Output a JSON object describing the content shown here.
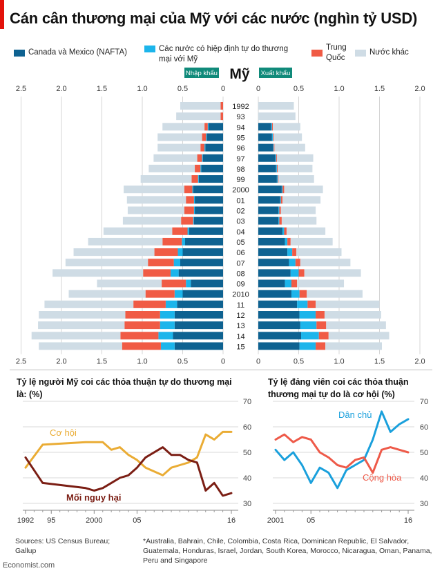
{
  "title": "Cán cân thương mại của Mỹ với các nước (nghìn tỷ USD)",
  "colors": {
    "nafta": "#0e6291",
    "fta": "#1cb5eb",
    "china": "#f05b45",
    "other": "#cfdce5",
    "label_bg": "#108a7a",
    "opportunity": "#eaac34",
    "threat": "#7b1e14",
    "democrats": "#1aa0dc",
    "republicans": "#ee5a49"
  },
  "legend": {
    "nafta": "Canada và Mexico (NAFTA)",
    "fta_line1": "Các nước có hiệp định tự do thương",
    "fta_line2": "mại với Mỹ",
    "china_line1": "Trung",
    "china_line2": "Quốc",
    "other": "Nước khác"
  },
  "pyramid": {
    "import_label": "Nhập khẩu",
    "country_label": "Mỹ",
    "export_label": "Xuất khẩu"
  },
  "chart_data": [
    {
      "type": "bar",
      "title": "Cán cân thương mại của Mỹ với các nước (nghìn tỷ USD)",
      "orientation": "horizontal-diverging",
      "left_label": "Nhập khẩu",
      "right_label": "Xuất khẩu",
      "xlim": [
        2.5,
        2.0
      ],
      "x_ticks_left": [
        "2.5",
        "2.0",
        "1.5",
        "1.0",
        "0.5",
        "0"
      ],
      "x_ticks_right": [
        "0",
        "0.5",
        "1.0",
        "1.5",
        "2.0"
      ],
      "categories": [
        "1992",
        "93",
        "94",
        "95",
        "96",
        "97",
        "98",
        "99",
        "2000",
        "01",
        "02",
        "03",
        "04",
        "05",
        "06",
        "07",
        "08",
        "09",
        "2010",
        "11",
        "12",
        "13",
        "14",
        "15"
      ],
      "series": [
        {
          "name": "Canada và Mexico (NAFTA)",
          "side": "imports",
          "values": [
            0.0,
            0.0,
            0.18,
            0.2,
            0.22,
            0.25,
            0.27,
            0.3,
            0.37,
            0.35,
            0.35,
            0.36,
            0.42,
            0.47,
            0.5,
            0.53,
            0.55,
            0.4,
            0.5,
            0.57,
            0.6,
            0.6,
            0.62,
            0.6
          ]
        },
        {
          "name": "Các nước có hiệp định tự do thương mại với Mỹ",
          "side": "imports",
          "values": [
            0.0,
            0.0,
            0.01,
            0.01,
            0.01,
            0.01,
            0.01,
            0.01,
            0.01,
            0.01,
            0.01,
            0.01,
            0.02,
            0.04,
            0.06,
            0.08,
            0.1,
            0.06,
            0.1,
            0.14,
            0.18,
            0.18,
            0.18,
            0.17
          ]
        },
        {
          "name": "Trung Quốc",
          "side": "imports",
          "values": [
            0.03,
            0.03,
            0.04,
            0.05,
            0.05,
            0.06,
            0.07,
            0.08,
            0.1,
            0.1,
            0.12,
            0.15,
            0.19,
            0.24,
            0.29,
            0.32,
            0.34,
            0.3,
            0.36,
            0.4,
            0.43,
            0.44,
            0.47,
            0.48
          ]
        },
        {
          "name": "Nước khác",
          "side": "imports",
          "values": [
            0.5,
            0.55,
            0.52,
            0.55,
            0.53,
            0.54,
            0.57,
            0.63,
            0.75,
            0.73,
            0.7,
            0.72,
            0.85,
            0.92,
            1.0,
            1.02,
            1.12,
            0.8,
            0.95,
            1.1,
            1.07,
            1.07,
            1.1,
            1.03
          ]
        },
        {
          "name": "Canada và Mexico (NAFTA)",
          "side": "exports",
          "values": [
            0.0,
            0.0,
            0.16,
            0.17,
            0.18,
            0.21,
            0.22,
            0.23,
            0.29,
            0.27,
            0.25,
            0.25,
            0.3,
            0.33,
            0.36,
            0.38,
            0.4,
            0.33,
            0.41,
            0.48,
            0.51,
            0.52,
            0.53,
            0.51
          ]
        },
        {
          "name": "Các nước có hiệp định tự do thương mại với Mỹ",
          "side": "exports",
          "values": [
            0.0,
            0.0,
            0.01,
            0.01,
            0.01,
            0.01,
            0.01,
            0.01,
            0.01,
            0.01,
            0.01,
            0.01,
            0.02,
            0.03,
            0.06,
            0.08,
            0.1,
            0.08,
            0.1,
            0.13,
            0.2,
            0.2,
            0.22,
            0.2
          ]
        },
        {
          "name": "Trung Quốc",
          "side": "exports",
          "values": [
            0.0,
            0.0,
            0.01,
            0.01,
            0.01,
            0.01,
            0.01,
            0.01,
            0.02,
            0.02,
            0.02,
            0.03,
            0.03,
            0.04,
            0.05,
            0.06,
            0.07,
            0.07,
            0.09,
            0.1,
            0.11,
            0.12,
            0.12,
            0.12
          ]
        },
        {
          "name": "Nước khác",
          "side": "exports",
          "values": [
            0.44,
            0.46,
            0.34,
            0.35,
            0.38,
            0.45,
            0.43,
            0.44,
            0.48,
            0.47,
            0.43,
            0.43,
            0.48,
            0.52,
            0.56,
            0.62,
            0.7,
            0.58,
            0.69,
            0.79,
            0.7,
            0.74,
            0.75,
            0.7
          ]
        }
      ]
    },
    {
      "type": "line",
      "title": "Tỷ lệ người Mỹ coi các thỏa thuận tự do thương mại là: (%)",
      "ylim": [
        30,
        70
      ],
      "y_ticks": [
        "30",
        "40",
        "50",
        "60",
        "70"
      ],
      "x_ticks": [
        "1992",
        "95",
        "2000",
        "05",
        "16"
      ],
      "series": [
        {
          "name": "Cơ hội",
          "x": [
            1992,
            1994,
            1999,
            2000,
            2001,
            2002,
            2003,
            2004,
            2005,
            2006,
            2008,
            2009,
            2010,
            2011,
            2012,
            2013,
            2014,
            2015,
            2016
          ],
          "values": [
            44,
            53,
            54,
            54,
            54,
            51,
            52,
            49,
            47,
            44,
            41,
            44,
            45,
            46,
            48,
            57,
            55,
            58,
            58
          ]
        },
        {
          "name": "Mối nguy hại",
          "x": [
            1992,
            1994,
            1999,
            2000,
            2001,
            2002,
            2003,
            2004,
            2005,
            2006,
            2008,
            2009,
            2010,
            2011,
            2012,
            2013,
            2014,
            2015,
            2016
          ],
          "values": [
            48,
            38,
            36,
            35,
            36,
            38,
            40,
            41,
            44,
            48,
            52,
            49,
            49,
            47,
            46,
            35,
            38,
            33,
            34
          ]
        }
      ]
    },
    {
      "type": "line",
      "title": "Tỷ lệ đảng viên coi các thỏa thuận thương mại tự do là cơ hội (%)",
      "ylim": [
        30,
        70
      ],
      "y_ticks": [
        "30",
        "40",
        "50",
        "60",
        "70"
      ],
      "x_ticks": [
        "2001",
        "05",
        "16"
      ],
      "series": [
        {
          "name": "Dân chủ",
          "x": [
            2001,
            2002,
            2003,
            2004,
            2005,
            2006,
            2007,
            2008,
            2009,
            2010,
            2011,
            2012,
            2013,
            2014,
            2015,
            2016
          ],
          "values": [
            51,
            47,
            50,
            45,
            38,
            44,
            42,
            36,
            43,
            45,
            47,
            55,
            66,
            58,
            61,
            63
          ]
        },
        {
          "name": "Cộng hòa",
          "x": [
            2001,
            2002,
            2003,
            2004,
            2005,
            2006,
            2007,
            2008,
            2009,
            2010,
            2011,
            2012,
            2013,
            2014,
            2015,
            2016
          ],
          "values": [
            55,
            57,
            54,
            56,
            55,
            50,
            48,
            45,
            44,
            47,
            48,
            42,
            51,
            52,
            51,
            50
          ]
        }
      ]
    }
  ],
  "small1": {
    "title_line1": "Tỷ lệ người Mỹ coi các thỏa thuận tự do thương mại",
    "title_line2": "là: (%)",
    "label_opportunity": "Cơ hội",
    "label_threat": "Mối nguy hại"
  },
  "small2": {
    "title_line1": "Tỷ lệ đảng viên coi các thỏa thuận",
    "title_line2": "thương mại tự do là cơ hội (%)",
    "label_dem": "Dân chủ",
    "label_rep": "Cộng hòa"
  },
  "footer": {
    "sources_line1": "Sources: US Census Bureau;",
    "sources_line2": "Gallup",
    "note": "*Australia, Bahrain, Chile, Colombia, Costa Rica, Dominican Republic, El Salvador, Guatemala, Honduras, Israel, Jordan, South Korea, Morocco, Nicaragua, Oman, Panama, Peru and Singapore",
    "brand": "Economist.com"
  }
}
